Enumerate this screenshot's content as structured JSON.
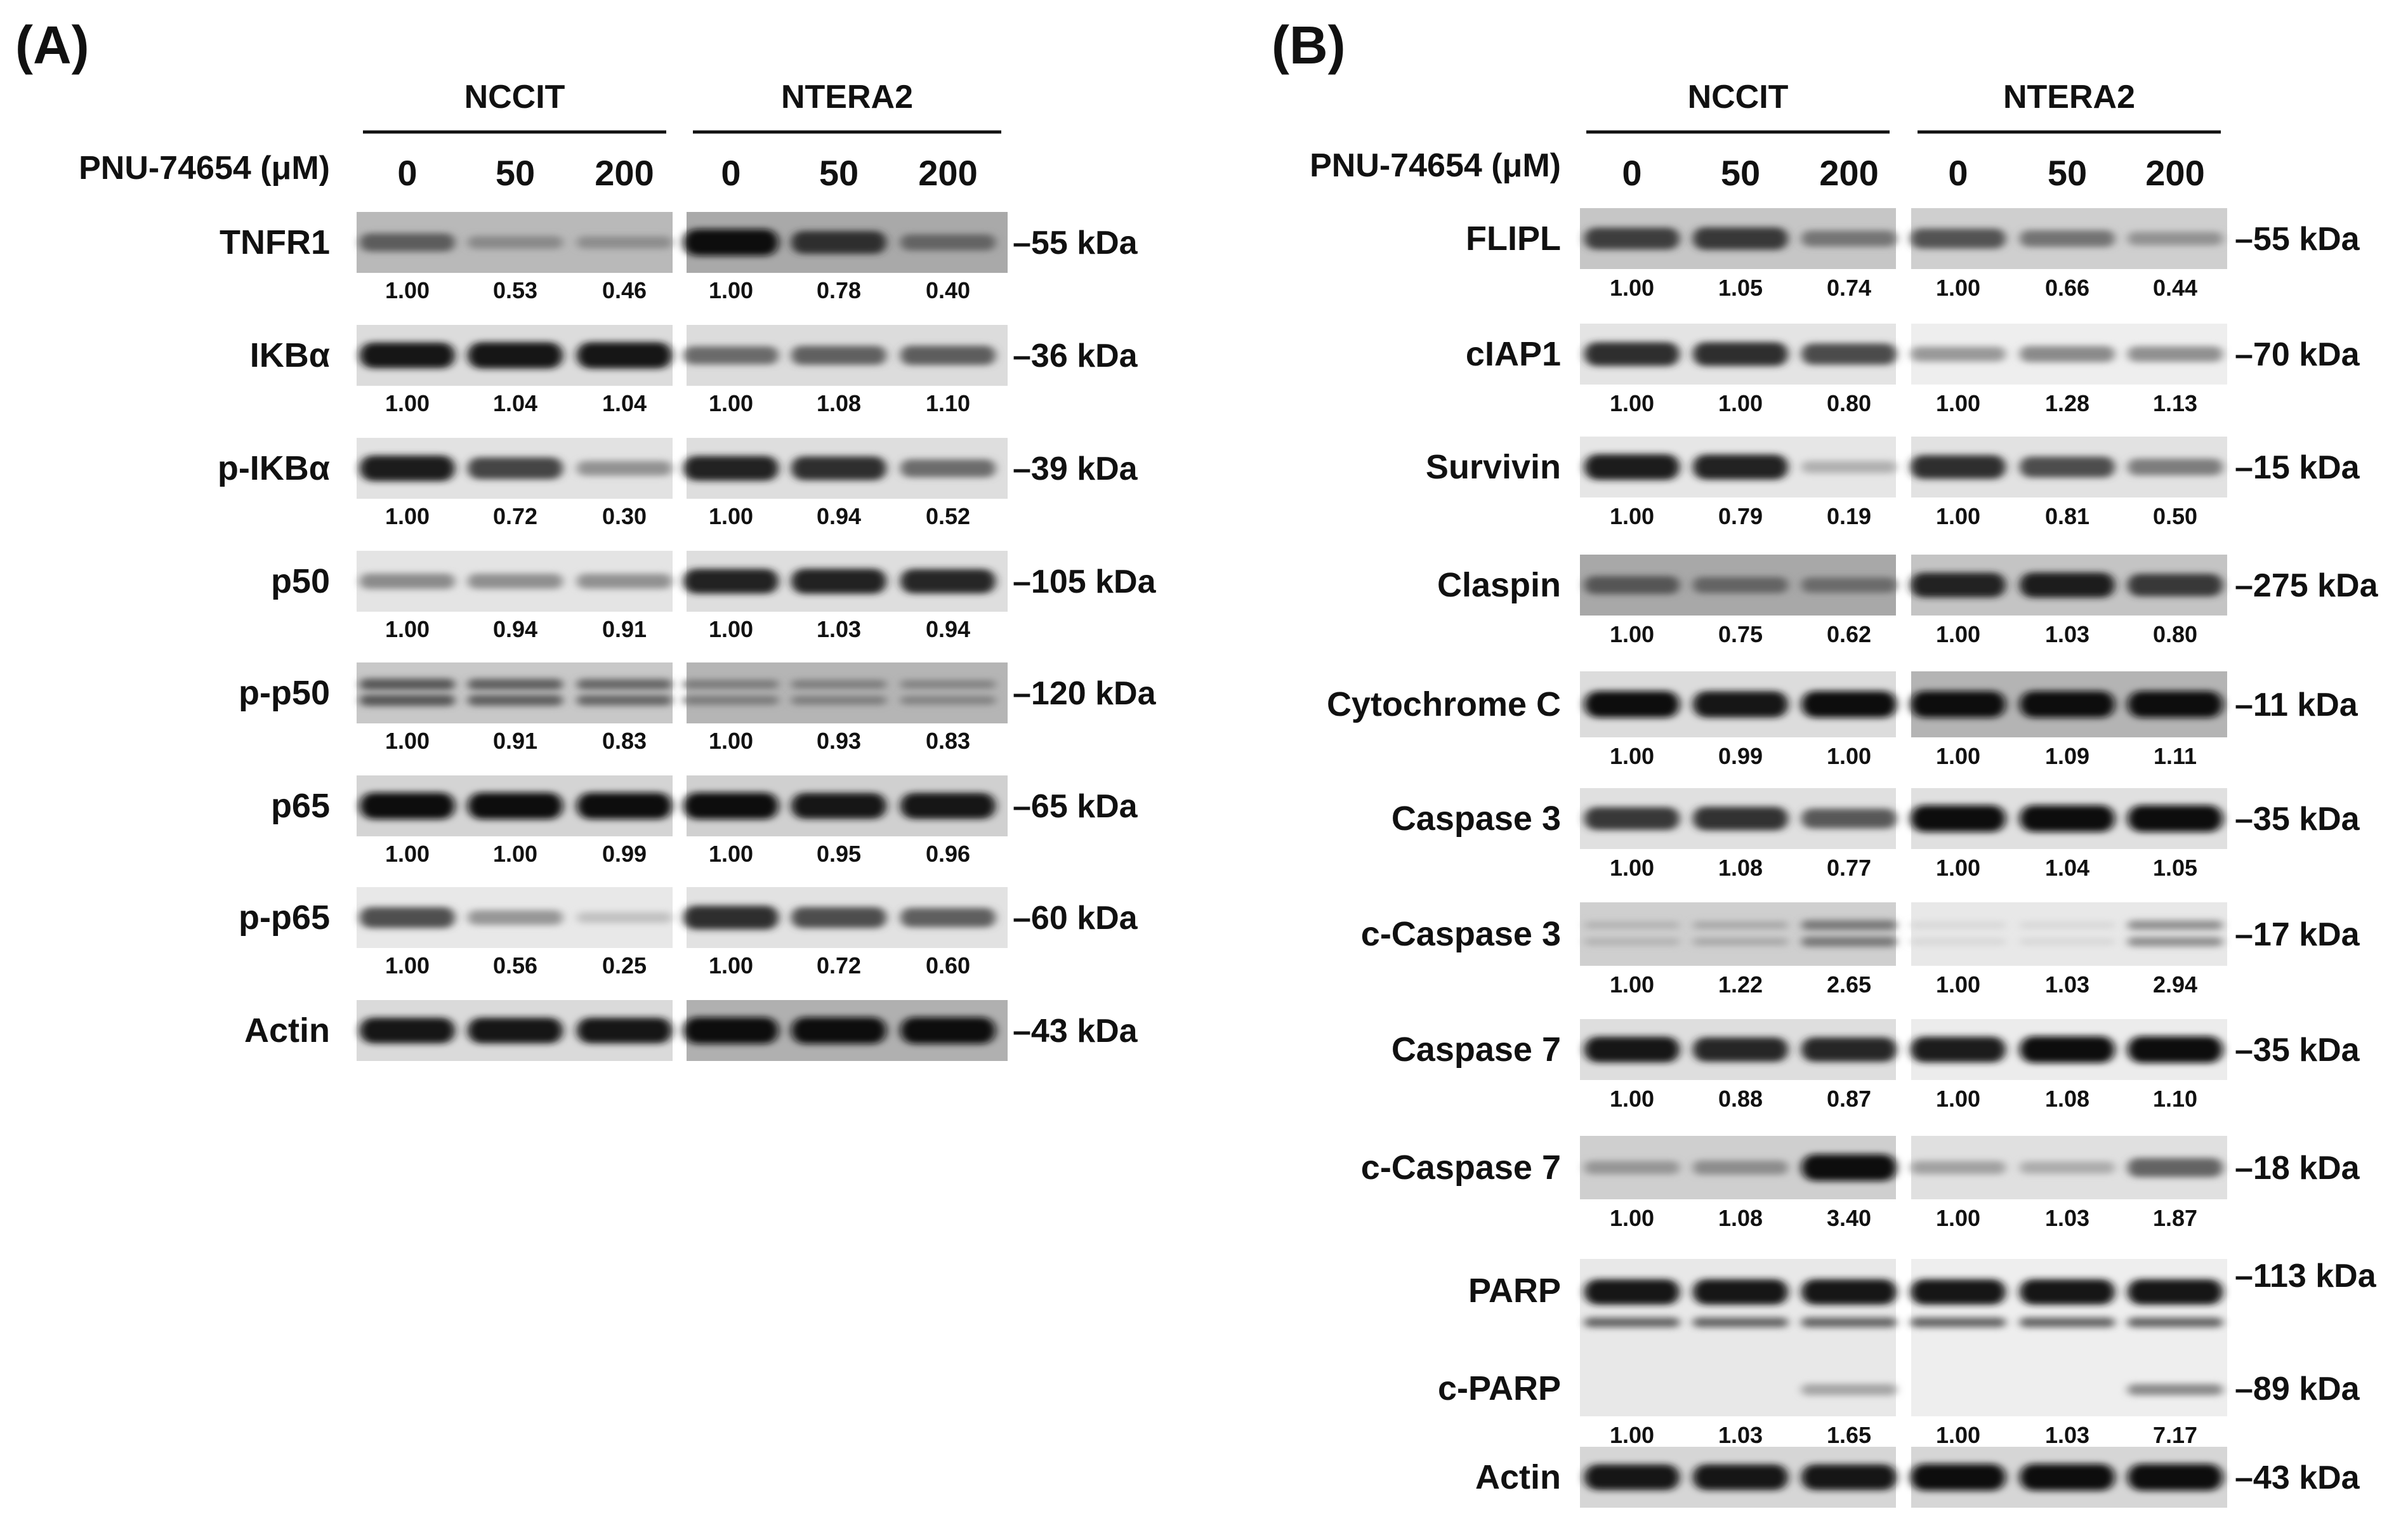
{
  "panels": [
    {
      "letter": "(A)",
      "treatment_label": "PNU-74654 (μM)",
      "cell_lines": [
        "NCCIT",
        "NTERA2"
      ],
      "doses": [
        "0",
        "50",
        "200"
      ],
      "rows": [
        {
          "protein": "TNFR1",
          "mw": "–55 kDa",
          "nccit": [
            "1.00",
            "0.53",
            "0.46"
          ],
          "ntera2": [
            "1.00",
            "0.78",
            "0.40"
          ],
          "int_n": [
            0.55,
            0.28,
            0.26
          ],
          "int_t": [
            1.0,
            0.8,
            0.45
          ],
          "bands": 1,
          "bg_n": "#b9b9b9",
          "bg_t": "#a9a9a9"
        },
        {
          "protein": "IKBα",
          "mw": "–36 kDa",
          "nccit": [
            "1.00",
            "1.04",
            "1.04"
          ],
          "ntera2": [
            "1.00",
            "1.08",
            "1.10"
          ],
          "int_n": [
            0.95,
            0.98,
            0.98
          ],
          "int_t": [
            0.55,
            0.6,
            0.62
          ],
          "bands": 1,
          "bg_n": "#dcdcdc",
          "bg_t": "#dcdcdc"
        },
        {
          "protein": "p-IKBα",
          "mw": "–39 kDa",
          "nccit": [
            "1.00",
            "0.72",
            "0.30"
          ],
          "ntera2": [
            "1.00",
            "0.94",
            "0.52"
          ],
          "int_n": [
            0.95,
            0.75,
            0.38
          ],
          "int_t": [
            0.9,
            0.85,
            0.55
          ],
          "bands": 1,
          "bg_n": "#e2e2e2",
          "bg_t": "#dedede"
        },
        {
          "protein": "p50",
          "mw": "–105 kDa",
          "nccit": [
            "1.00",
            "0.94",
            "0.91"
          ],
          "ntera2": [
            "1.00",
            "1.03",
            "0.94"
          ],
          "int_n": [
            0.42,
            0.4,
            0.39
          ],
          "int_t": [
            0.9,
            0.92,
            0.88
          ],
          "bands": 1,
          "bg_n": "#e4e4e4",
          "bg_t": "#dedede"
        },
        {
          "protein": "p-p50",
          "mw": "–120 kDa",
          "nccit": [
            "1.00",
            "0.91",
            "0.83"
          ],
          "ntera2": [
            "1.00",
            "0.93",
            "0.83"
          ],
          "int_n": [
            0.6,
            0.56,
            0.52
          ],
          "int_t": [
            0.35,
            0.33,
            0.3
          ],
          "bands": 2,
          "bg_n": "#c8c8c8",
          "bg_t": "#b5b5b5"
        },
        {
          "protein": "p65",
          "mw": "–65 kDa",
          "nccit": [
            "1.00",
            "1.00",
            "0.99"
          ],
          "ntera2": [
            "1.00",
            "0.95",
            "0.96"
          ],
          "int_n": [
            1.0,
            1.0,
            0.99
          ],
          "int_t": [
            1.0,
            0.96,
            0.97
          ],
          "bands": 1,
          "bg_n": "#d4d4d4",
          "bg_t": "#d0d0d0"
        },
        {
          "protein": "p-p65",
          "mw": "–60 kDa",
          "nccit": [
            "1.00",
            "0.56",
            "0.25"
          ],
          "ntera2": [
            "1.00",
            "0.72",
            "0.60"
          ],
          "int_n": [
            0.7,
            0.38,
            0.18
          ],
          "int_t": [
            0.85,
            0.7,
            0.62
          ],
          "bands": 1,
          "bg_n": "#e8e8e8",
          "bg_t": "#e2e2e2"
        },
        {
          "protein": "Actin",
          "mw": "–43 kDa",
          "nccit": [],
          "ntera2": [],
          "int_n": [
            0.95,
            0.95,
            0.95
          ],
          "int_t": [
            1.0,
            1.0,
            1.0
          ],
          "bands": 1,
          "bg_n": "#dadada",
          "bg_t": "#b0b0b0"
        }
      ]
    },
    {
      "letter": "(B)",
      "treatment_label": "PNU-74654 (μM)",
      "cell_lines": [
        "NCCIT",
        "NTERA2"
      ],
      "doses": [
        "0",
        "50",
        "200"
      ],
      "rows": [
        {
          "protein": "FLIPL",
          "mw": "–55 kDa",
          "nccit": [
            "1.00",
            "1.05",
            "0.74"
          ],
          "ntera2": [
            "1.00",
            "0.66",
            "0.44"
          ],
          "int_n": [
            0.75,
            0.78,
            0.45
          ],
          "int_t": [
            0.65,
            0.48,
            0.32
          ],
          "bands": 1,
          "bg_n": "#c6c6c6",
          "bg_t": "#cfcfcf"
        },
        {
          "protein": "cIAP1",
          "mw": "–70 kDa",
          "nccit": [
            "1.00",
            "1.00",
            "0.80"
          ],
          "ntera2": [
            "1.00",
            "1.28",
            "1.13"
          ],
          "int_n": [
            0.85,
            0.85,
            0.72
          ],
          "int_t": [
            0.38,
            0.45,
            0.42
          ],
          "bands": 1,
          "bg_n": "#e4e4e4",
          "bg_t": "#eeeeee"
        },
        {
          "protein": "Survivin",
          "mw": "–15 kDa",
          "nccit": [
            "1.00",
            "0.79",
            "0.19"
          ],
          "ntera2": [
            "1.00",
            "0.81",
            "0.50"
          ],
          "int_n": [
            0.95,
            0.92,
            0.25
          ],
          "int_t": [
            0.85,
            0.7,
            0.48
          ],
          "bands": 1,
          "bg_n": "#e6e6e6",
          "bg_t": "#e2e2e2"
        },
        {
          "protein": "Claspin",
          "mw": "–275 kDa",
          "nccit": [
            "1.00",
            "0.75",
            "0.62"
          ],
          "ntera2": [
            "1.00",
            "1.03",
            "0.80"
          ],
          "int_n": [
            0.55,
            0.45,
            0.4
          ],
          "int_t": [
            0.9,
            0.92,
            0.78
          ],
          "bands": 1,
          "bg_n": "#a8a8a8",
          "bg_t": "#c4c4c4"
        },
        {
          "protein": "Cytochrome C",
          "mw": "–11 kDa",
          "nccit": [
            "1.00",
            "0.99",
            "1.00"
          ],
          "ntera2": [
            "1.00",
            "1.09",
            "1.11"
          ],
          "int_n": [
            1.0,
            0.98,
            1.0
          ],
          "int_t": [
            1.0,
            1.0,
            1.0
          ],
          "bands": 1,
          "bg_n": "#dcdcdc",
          "bg_t": "#b4b4b4"
        },
        {
          "protein": "Caspase 3",
          "mw": "–35 kDa",
          "nccit": [
            "1.00",
            "1.08",
            "0.77"
          ],
          "ntera2": [
            "1.00",
            "1.04",
            "1.05"
          ],
          "int_n": [
            0.8,
            0.84,
            0.65
          ],
          "int_t": [
            1.0,
            1.0,
            1.0
          ],
          "bands": 1,
          "bg_n": "#e0e0e0",
          "bg_t": "#e0e0e0"
        },
        {
          "protein": "c-Caspase 3",
          "mw": "–17 kDa",
          "nccit": [
            "1.00",
            "1.22",
            "2.65"
          ],
          "ntera2": [
            "1.00",
            "1.03",
            "2.94"
          ],
          "int_n": [
            0.15,
            0.2,
            0.45
          ],
          "int_t": [
            0.08,
            0.08,
            0.4
          ],
          "bands": 2,
          "bg_n": "#cfcfcf",
          "bg_t": "#e8e8e8"
        },
        {
          "protein": "Caspase 7",
          "mw": "–35 kDa",
          "nccit": [
            "1.00",
            "0.88",
            "0.87"
          ],
          "ntera2": [
            "1.00",
            "1.08",
            "1.10"
          ],
          "int_n": [
            0.95,
            0.88,
            0.88
          ],
          "int_t": [
            0.95,
            1.0,
            1.0
          ],
          "bands": 1,
          "bg_n": "#dedede",
          "bg_t": "#ececec"
        },
        {
          "protein": "c-Caspase 7",
          "mw": "–18 kDa",
          "nccit": [
            "1.00",
            "1.08",
            "3.40"
          ],
          "ntera2": [
            "1.00",
            "1.03",
            "1.87"
          ],
          "int_n": [
            0.3,
            0.35,
            1.0
          ],
          "int_t": [
            0.3,
            0.25,
            0.6
          ],
          "bands": 1,
          "bg_n": "#cfcfcf",
          "bg_t": "#e0e0e0"
        },
        {
          "protein": "PARP",
          "protein2": "c-PARP",
          "mw": "–113 kDa",
          "mw2": "–89 kDa",
          "nccit": [
            "1.00",
            "1.03",
            "1.65"
          ],
          "ntera2": [
            "1.00",
            "1.03",
            "7.17"
          ],
          "int_n": [
            1.0,
            1.0,
            1.0
          ],
          "int_t": [
            1.0,
            1.0,
            1.0
          ],
          "cparp_n": [
            0.0,
            0.0,
            0.35
          ],
          "cparp_t": [
            0.0,
            0.0,
            0.5
          ],
          "bands": "parp",
          "bg_n": "#e8e8e8",
          "bg_t": "#eeeeee"
        },
        {
          "protein": "Actin",
          "mw": "–43 kDa",
          "nccit": [],
          "ntera2": [],
          "int_n": [
            0.95,
            0.95,
            0.95
          ],
          "int_t": [
            1.0,
            1.0,
            1.0
          ],
          "bands": 1,
          "bg_n": "#d6d6d6",
          "bg_t": "#d6d6d6"
        }
      ]
    }
  ]
}
